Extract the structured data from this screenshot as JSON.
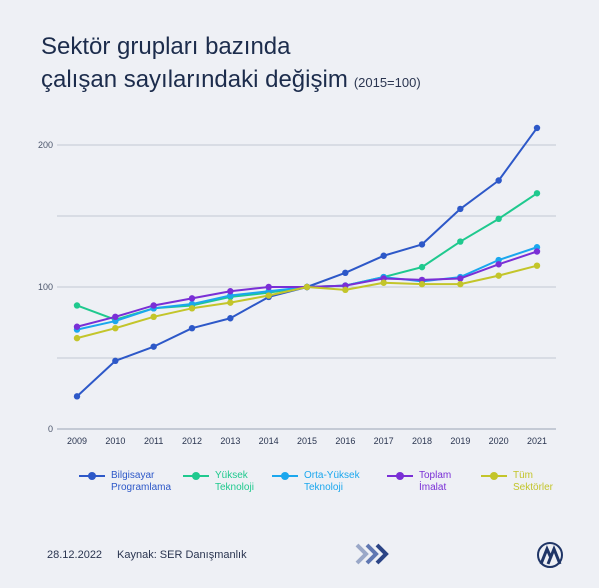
{
  "header": {
    "title_line1": "Sektör grupları bazında",
    "title_line2": "çalışan sayılarındaki değişim",
    "subtitle": "(2015=100)"
  },
  "footer": {
    "date": "28.12.2022",
    "source": "Kaynak: SER Danışmanlık",
    "arrows_icon": "triple-chevron-right-icon",
    "logo_icon": "aa-logo-icon"
  },
  "legend": [
    {
      "line1": "Bilgisayar",
      "line2": "Programlama",
      "color": "#2d58c8"
    },
    {
      "line1": "Yüksek",
      "line2": "Teknoloji",
      "color": "#1fc98e"
    },
    {
      "line1": "Orta-Yüksek",
      "line2": "Teknoloji",
      "color": "#1aa7ee"
    },
    {
      "line1": "Toplam",
      "line2": "İmalat",
      "color": "#7a2fd6"
    },
    {
      "line1": "Tüm",
      "line2": "Sektörler",
      "color": "#c3c52a"
    }
  ],
  "chart_data": {
    "type": "line",
    "x": [
      "2009",
      "2010",
      "2011",
      "2012",
      "2013",
      "2014",
      "2015",
      "2016",
      "2017",
      "2018",
      "2019",
      "2020",
      "2021"
    ],
    "yticks": [
      0,
      100,
      200
    ],
    "ylim": [
      0,
      220
    ],
    "grid": true,
    "legend_position": "bottom",
    "series": [
      {
        "name": "Bilgisayar Programlama",
        "color": "#2d58c8",
        "values": [
          23,
          48,
          58,
          71,
          78,
          93,
          100,
          110,
          122,
          130,
          155,
          175,
          212
        ]
      },
      {
        "name": "Yüksek Teknoloji",
        "color": "#1fc98e",
        "values": [
          87,
          77,
          85,
          87,
          93,
          96,
          100,
          101,
          107,
          114,
          132,
          148,
          166
        ]
      },
      {
        "name": "Orta-Yüksek Teknoloji",
        "color": "#1aa7ee",
        "values": [
          70,
          76,
          85,
          88,
          94,
          97,
          100,
          101,
          107,
          104,
          107,
          119,
          128
        ]
      },
      {
        "name": "Toplam İmalat",
        "color": "#7a2fd6",
        "values": [
          72,
          79,
          87,
          92,
          97,
          100,
          100,
          101,
          106,
          105,
          106,
          116,
          125
        ]
      },
      {
        "name": "Tüm Sektörler",
        "color": "#c3c52a",
        "values": [
          64,
          71,
          79,
          85,
          89,
          94,
          100,
          98,
          103,
          102,
          102,
          108,
          115
        ]
      }
    ]
  }
}
